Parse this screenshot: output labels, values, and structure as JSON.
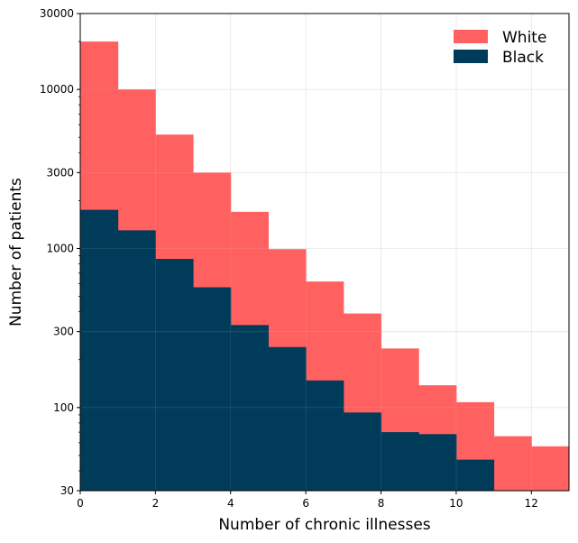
{
  "chart_data": {
    "type": "bar",
    "bar_style": "histogram-overlay",
    "xlabel": "Number of chronic illnesses",
    "ylabel": "Number of patients",
    "xlim": [
      0,
      13
    ],
    "ylim": [
      30,
      30000
    ],
    "yscale": "log",
    "grid": true,
    "legend_position": "top-right",
    "x_ticks": [
      0,
      2,
      4,
      6,
      8,
      10,
      12
    ],
    "x_tick_labels": [
      "0",
      "2",
      "4",
      "6",
      "8",
      "10",
      "12"
    ],
    "y_ticks": [
      30,
      100,
      300,
      1000,
      3000,
      10000,
      30000
    ],
    "y_tick_labels": [
      "30",
      "100",
      "300",
      "1000",
      "3000",
      "10000",
      "30000"
    ],
    "bin_edges": [
      0,
      1,
      2,
      3,
      4,
      5,
      6,
      7,
      8,
      9,
      10,
      11,
      12,
      13
    ],
    "series": [
      {
        "name": "White",
        "color": "#ff6060",
        "values": [
          20000,
          10000,
          5200,
          3000,
          1700,
          990,
          620,
          390,
          235,
          138,
          108,
          66,
          57
        ]
      },
      {
        "name": "Black",
        "color": "#003b5a",
        "values": [
          1750,
          1300,
          860,
          570,
          330,
          240,
          148,
          93,
          70,
          68,
          47,
          null,
          null
        ]
      }
    ]
  }
}
